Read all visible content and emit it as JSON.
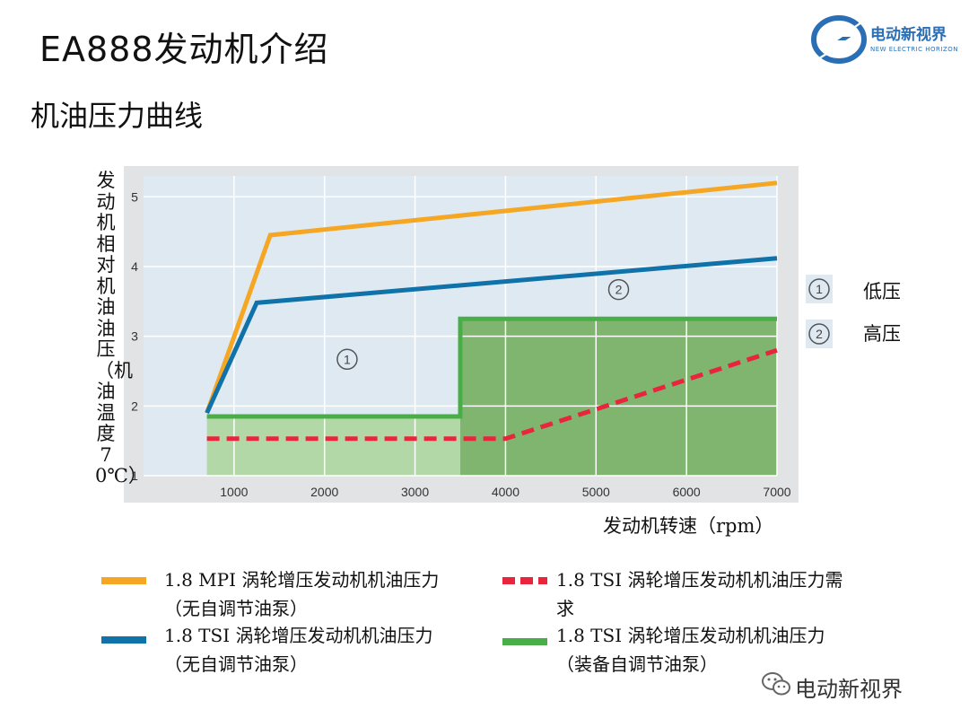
{
  "slide": {
    "title": "EA888发动机介绍",
    "subtitle": "机油压力曲线"
  },
  "logo": {
    "name": "电动新视界",
    "tagline": "NEW ELECTRIC HORIZON",
    "color": "#2a6fb5"
  },
  "footer": {
    "text": "电动新视界",
    "icon": "wechat-icon"
  },
  "zones": [
    {
      "marker": "1",
      "label": "低压"
    },
    {
      "marker": "2",
      "label": "高压"
    }
  ],
  "legend": [
    {
      "label_line1": "1.8 MPI 涡轮增压发动机机油压力",
      "label_line2": "（无自调节油泵）",
      "color": "#f5a623",
      "style": "solid"
    },
    {
      "label_line1": "1.8 TSI 涡轮增压发动机机油压力需",
      "label_line2": "求",
      "color": "#e8253d",
      "style": "dashed"
    },
    {
      "label_line1": "1.8 TSI 涡轮增压发动机机油压力",
      "label_line2": "（无自调节油泵）",
      "color": "#0f72a8",
      "style": "solid"
    },
    {
      "label_line1": "1.8 TSI 涡轮增压发动机机油压力",
      "label_line2": "（装备自调节油泵）",
      "color": "#4aae48",
      "style": "solid"
    }
  ],
  "chart_data": {
    "type": "line",
    "xlabel": "发动机转速（rpm）",
    "ylabel": "发动机相对机油油压（机油温度70℃）",
    "xlim": [
      0,
      7000
    ],
    "ylim": [
      1,
      5.3
    ],
    "x_ticks": [
      1000,
      2000,
      3000,
      4000,
      5000,
      6000,
      7000
    ],
    "y_ticks": [
      1,
      2,
      3,
      4,
      5
    ],
    "grid": true,
    "zone_markers": [
      {
        "label": "1",
        "x": 2250,
        "y": 2.67
      },
      {
        "label": "2",
        "x": 5250,
        "y": 3.67
      }
    ],
    "series": [
      {
        "name": "1.8 MPI 涡轮增压发动机机油压力（无自调节油泵）",
        "color": "#f5a623",
        "style": "solid",
        "points": [
          [
            700,
            1.9
          ],
          [
            1400,
            4.45
          ],
          [
            7000,
            5.2
          ]
        ]
      },
      {
        "name": "1.8 TSI 涡轮增压发动机机油压力（无自调节油泵）",
        "color": "#0f72a8",
        "style": "solid",
        "points": [
          [
            700,
            1.9
          ],
          [
            1250,
            3.48
          ],
          [
            7000,
            4.12
          ]
        ]
      },
      {
        "name": "1.8 TSI 涡轮增压发动机机油压力（装备自调节油泵）",
        "color": "#4aae48",
        "style": "solid",
        "points": [
          [
            700,
            1.85
          ],
          [
            3500,
            1.85
          ],
          [
            3500,
            3.25
          ],
          [
            7000,
            3.25
          ]
        ]
      },
      {
        "name": "1.8 TSI 涡轮增压发动机机油压力需求",
        "color": "#e8253d",
        "style": "dashed",
        "points": [
          [
            700,
            1.53
          ],
          [
            4000,
            1.53
          ],
          [
            7000,
            2.8
          ]
        ]
      }
    ]
  }
}
